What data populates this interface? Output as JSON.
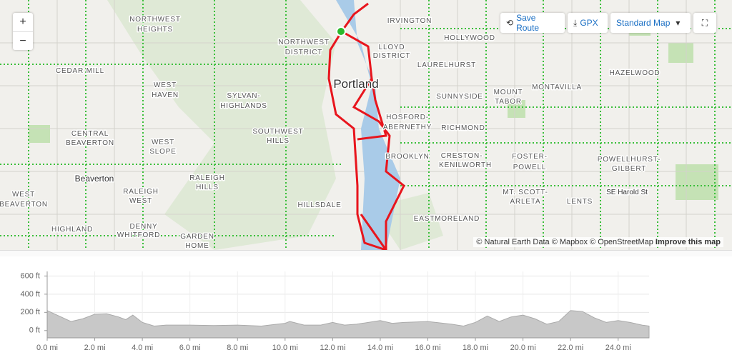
{
  "toolbar": {
    "save_route": "Save Route",
    "gpx": "GPX",
    "map_style": "Standard Map"
  },
  "map": {
    "labels": [
      "IRVINGTON",
      "HOLLYWOOD",
      "NORTHWEST",
      "HEIGHTS",
      "NORTHWEST",
      "DISTRICT",
      "LLOYD",
      "DISTRICT",
      "CEDAR MILL",
      "LAURELHURST",
      "HAZELWOOD",
      "MONTAVILLA",
      "Portland",
      "WEST",
      "HAVEN",
      "SYLVAN-",
      "HIGHLANDS",
      "SUNNYSIDE",
      "MOUNT",
      "TABOR",
      "HOSFORD-",
      "ABERNETHY",
      "RICHMOND",
      "CENTRAL",
      "BEAVERTON",
      "SOUTHWEST",
      "HILLS",
      "WEST",
      "SLOPE",
      "BROOKLYN",
      "CRESTON-",
      "KENILWORTH",
      "FOSTER-",
      "POWELL",
      "POWELLHURST-",
      "GILBERT",
      "Beaverton",
      "RALEIGH",
      "HILLS",
      "SE Harold St",
      "WEST",
      "BEAVERTON",
      "RALEIGH",
      "WEST",
      "MT. SCOTT-",
      "ARLETA",
      "LENTS",
      "HILLSDALE",
      "EASTMORELAND",
      "HIGHLAND",
      "DENNY",
      "WHITFORD",
      "GARDEN",
      "HOME"
    ],
    "attribution": "© Natural Earth Data © Mapbox © OpenStreetMap",
    "improve_link": "Improve this map"
  },
  "chart_data": {
    "type": "area",
    "color": "#c8c8c8",
    "x": [
      0,
      0.5,
      1,
      1.5,
      2,
      2.5,
      3,
      3.3,
      3.6,
      4,
      4.5,
      5,
      6,
      7,
      8,
      9,
      10,
      10.2,
      10.8,
      11.5,
      12,
      12.5,
      13,
      14,
      14.5,
      15,
      16,
      17,
      17.5,
      18,
      18.5,
      19,
      19.5,
      20,
      20.5,
      21,
      21.5,
      22,
      22.5,
      23,
      23.5,
      24,
      24.5,
      25,
      25.3
    ],
    "values": [
      220,
      160,
      100,
      130,
      180,
      185,
      150,
      120,
      170,
      90,
      50,
      60,
      60,
      55,
      60,
      50,
      80,
      100,
      60,
      60,
      90,
      60,
      70,
      110,
      80,
      90,
      100,
      70,
      50,
      90,
      160,
      100,
      150,
      170,
      130,
      70,
      100,
      220,
      210,
      140,
      90,
      110,
      90,
      60,
      50
    ],
    "xlim": [
      0,
      25.3
    ],
    "ylim": [
      -80,
      650
    ],
    "xticks": [
      {
        "value": 0,
        "label": "0.0 mi"
      },
      {
        "value": 2,
        "label": "2.0 mi"
      },
      {
        "value": 4,
        "label": "4.0 mi"
      },
      {
        "value": 6,
        "label": "6.0 mi"
      },
      {
        "value": 8,
        "label": "8.0 mi"
      },
      {
        "value": 10,
        "label": "10.0 mi"
      },
      {
        "value": 12,
        "label": "12.0 mi"
      },
      {
        "value": 14,
        "label": "14.0 mi"
      },
      {
        "value": 16,
        "label": "16.0 mi"
      },
      {
        "value": 18,
        "label": "18.0 mi"
      },
      {
        "value": 20,
        "label": "20.0 mi"
      },
      {
        "value": 22,
        "label": "22.0 mi"
      },
      {
        "value": 24,
        "label": "24.0 mi"
      }
    ],
    "yticks": [
      {
        "value": 0,
        "label": "0 ft"
      },
      {
        "value": 200,
        "label": "200 ft"
      },
      {
        "value": 400,
        "label": "400 ft"
      },
      {
        "value": 600,
        "label": "600 ft"
      }
    ],
    "grid": true
  }
}
